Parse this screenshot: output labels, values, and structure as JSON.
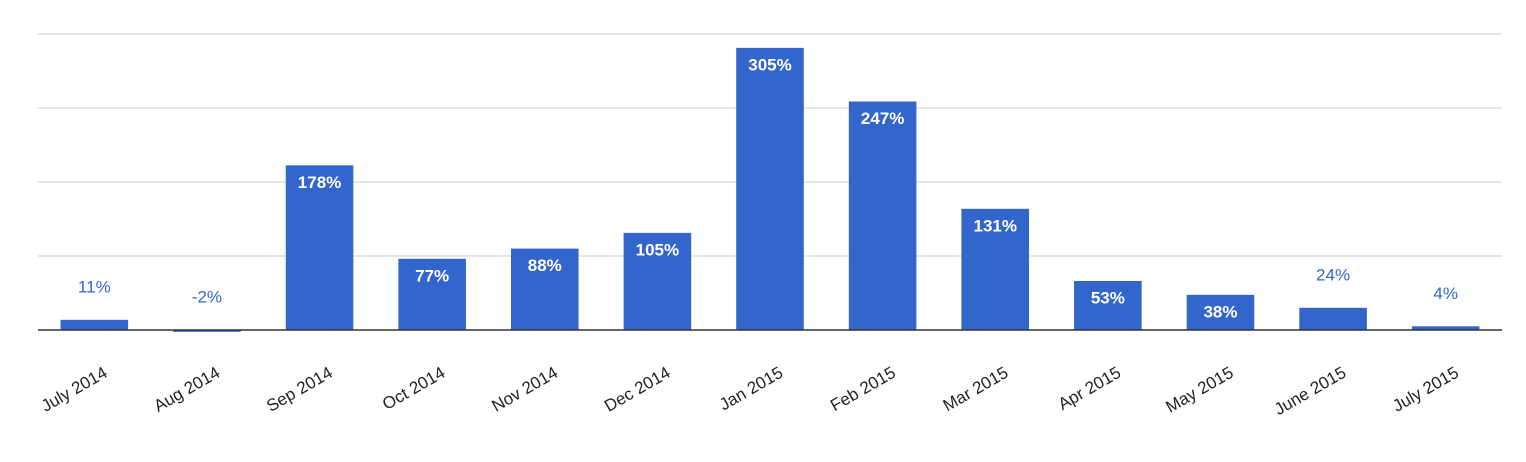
{
  "chart_data": {
    "type": "bar",
    "categories": [
      "July 2014",
      "Aug 2014",
      "Sep 2014",
      "Oct 2014",
      "Nov 2014",
      "Dec 2014",
      "Jan 2015",
      "Feb 2015",
      "Mar 2015",
      "Apr 2015",
      "May 2015",
      "June 2015",
      "July 2015"
    ],
    "values": [
      11,
      -2,
      178,
      77,
      88,
      105,
      305,
      247,
      131,
      53,
      38,
      24,
      4
    ],
    "value_labels": [
      "11%",
      "-2%",
      "178%",
      "77%",
      "88%",
      "105%",
      "305%",
      "247%",
      "131%",
      "53%",
      "38%",
      "24%",
      "4%"
    ],
    "color": "#3366cc",
    "ylim": [
      0,
      320
    ],
    "yticks": [
      0,
      80,
      160,
      240,
      320
    ],
    "grid": true
  }
}
